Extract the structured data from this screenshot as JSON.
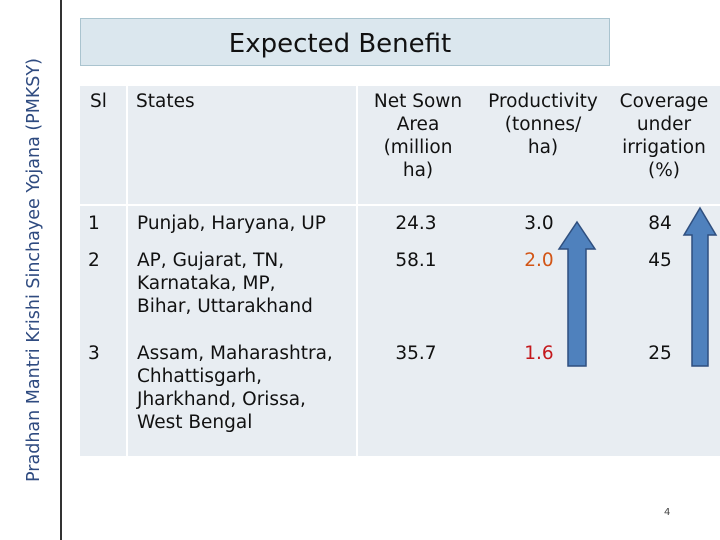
{
  "slide": {
    "side_title": "Pradhan Mantri Krishi Sinchayee Yojana (PMKSY)",
    "title": "Expected Benefit",
    "page_number": "4"
  },
  "table": {
    "headers": {
      "sl": "Sl",
      "states": "States",
      "net_sown": [
        "Net Sown",
        "Area",
        "(million",
        "ha)"
      ],
      "productivity": [
        "Productivity",
        "(tonnes/",
        "ha)"
      ],
      "coverage": [
        "Coverage",
        "under",
        "irrigation",
        "(%)"
      ]
    },
    "rows": [
      {
        "sl": "1",
        "states": [
          "Punjab, Haryana, UP"
        ],
        "net_sown": "24.3",
        "productivity": "3.0",
        "coverage": "84"
      },
      {
        "sl": "2",
        "states": [
          "AP, Gujarat, TN,",
          "Karnataka, MP,",
          "Bihar, Uttarakhand"
        ],
        "net_sown": "58.1",
        "productivity": "2.0",
        "coverage": "45"
      },
      {
        "sl": "3",
        "states": [
          "Assam, Maharashtra,",
          "Chhattisgarh,",
          "Jharkhand, Orissa,",
          "West Bengal"
        ],
        "net_sown": "35.7",
        "productivity": "1.6",
        "coverage": "25"
      }
    ]
  },
  "colors": {
    "arrow_fill": "#4f81bd",
    "arrow_stroke": "#2f4f7f",
    "row2_productivity": "#d25516",
    "row3_productivity": "#c4181c"
  }
}
